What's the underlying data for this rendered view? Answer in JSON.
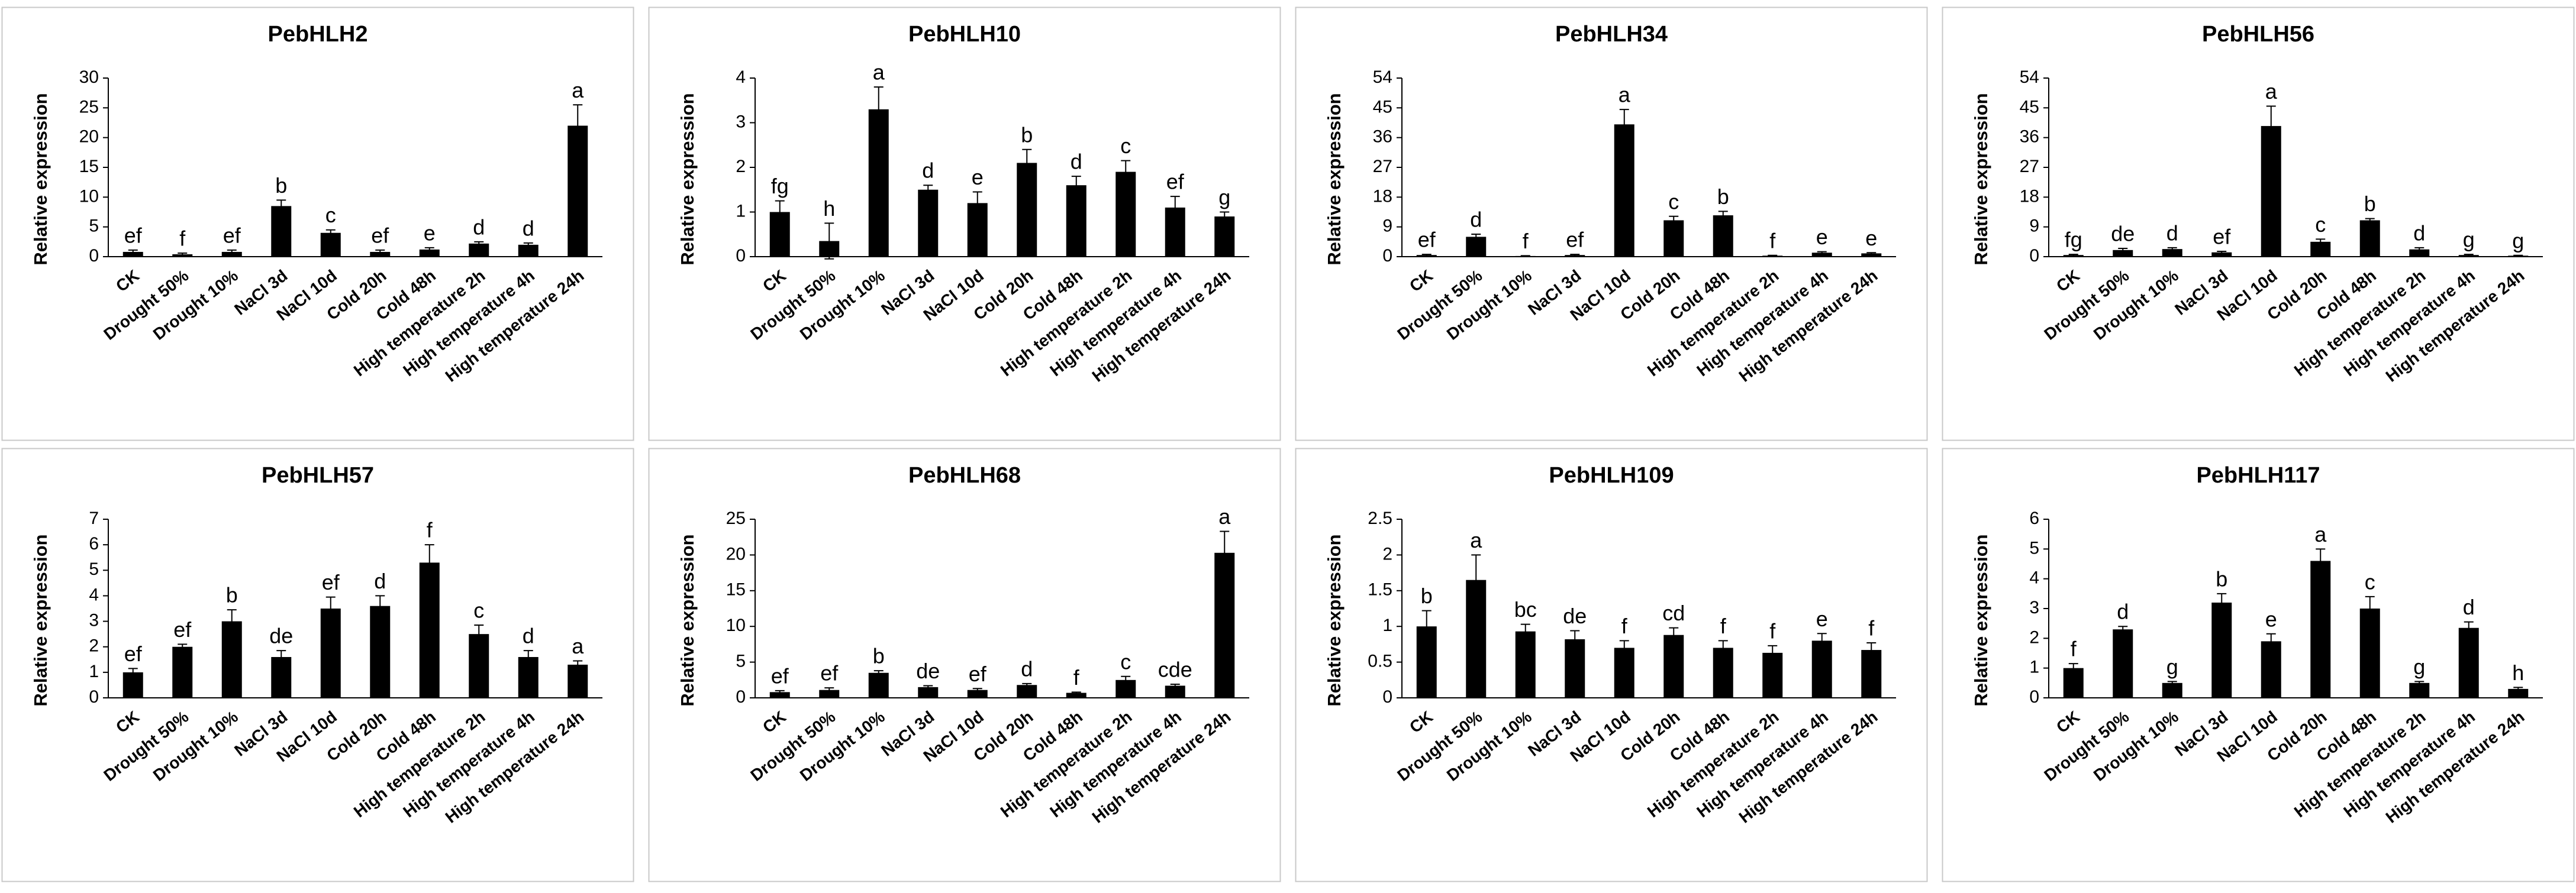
{
  "chart_data": [
    {
      "type": "bar",
      "title": "PebHLH2",
      "ylabel": "Relative expression",
      "color": "#000000",
      "categories": [
        "CK",
        "Drought 50%",
        "Drought 10%",
        "NaCl 3d",
        "NaCl 10d",
        "Cold 20h",
        "Cold 48h",
        "High temperature 2h",
        "High temperature 4h",
        "High temperature 24h"
      ],
      "values": [
        0.8,
        0.4,
        0.8,
        8.5,
        4,
        0.8,
        1.2,
        2.2,
        2,
        22
      ],
      "errors": [
        0.3,
        0.2,
        0.3,
        1,
        0.5,
        0.3,
        0.3,
        0.3,
        0.3,
        3.5
      ],
      "letters": [
        "ef",
        "f",
        "ef",
        "b",
        "c",
        "ef",
        "e",
        "d",
        "d",
        "a"
      ],
      "ylim": [
        0,
        30
      ],
      "yticks": [
        0,
        5,
        10,
        15,
        20,
        25,
        30
      ]
    },
    {
      "type": "bar",
      "title": "PebHLH10",
      "ylabel": "Relative expression",
      "color": "#000000",
      "categories": [
        "CK",
        "Drought 50%",
        "Drought 10%",
        "NaCl 3d",
        "NaCl 10d",
        "Cold 20h",
        "Cold 48h",
        "High temperature 2h",
        "High temperature 4h",
        "High temperature 24h"
      ],
      "values": [
        1.0,
        0.35,
        3.3,
        1.5,
        1.2,
        2.1,
        1.6,
        1.9,
        1.1,
        0.9
      ],
      "errors": [
        0.25,
        0.4,
        0.5,
        0.1,
        0.25,
        0.3,
        0.2,
        0.25,
        0.25,
        0.1
      ],
      "letters": [
        "fg",
        "h",
        "a",
        "d",
        "e",
        "b",
        "d",
        "c",
        "ef",
        "g"
      ],
      "ylim": [
        0,
        4
      ],
      "yticks": [
        0,
        1,
        2,
        3,
        4
      ]
    },
    {
      "type": "bar",
      "title": "PebHLH34",
      "ylabel": "Relative expression",
      "color": "#000000",
      "categories": [
        "CK",
        "Drought 50%",
        "Drought 10%",
        "NaCl 3d",
        "NaCl 10d",
        "Cold 20h",
        "Cold 48h",
        "High temperature 2h",
        "High temperature 4h",
        "High temperature 24h"
      ],
      "values": [
        0.5,
        6,
        0.2,
        0.5,
        40,
        11,
        12.5,
        0.3,
        1.2,
        1
      ],
      "errors": [
        0.2,
        0.8,
        0.1,
        0.2,
        4.5,
        1.2,
        1.2,
        0.1,
        0.3,
        0.2
      ],
      "letters": [
        "ef",
        "d",
        "f",
        "ef",
        "a",
        "c",
        "b",
        "f",
        "e",
        "e"
      ],
      "ylim": [
        0,
        54
      ],
      "yticks": [
        0,
        9,
        18,
        27,
        36,
        45,
        54
      ]
    },
    {
      "type": "bar",
      "title": "PebHLH56",
      "ylabel": "Relative expression",
      "color": "#000000",
      "categories": [
        "CK",
        "Drought 50%",
        "Drought 10%",
        "NaCl 3d",
        "NaCl 10d",
        "Cold 20h",
        "Cold 48h",
        "High temperature 2h",
        "High temperature 4h",
        "High temperature 24h"
      ],
      "values": [
        0.5,
        2,
        2.3,
        1.3,
        39.5,
        4.5,
        11,
        2.2,
        0.5,
        0.3
      ],
      "errors": [
        0.2,
        0.5,
        0.4,
        0.3,
        6,
        0.8,
        0.5,
        0.5,
        0.2,
        0.1
      ],
      "letters": [
        "fg",
        "de",
        "d",
        "ef",
        "a",
        "c",
        "b",
        "d",
        "g",
        "g"
      ],
      "ylim": [
        0,
        54
      ],
      "yticks": [
        0,
        9,
        18,
        27,
        36,
        45,
        54
      ]
    },
    {
      "type": "bar",
      "title": "PebHLH57",
      "ylabel": "Relative expression",
      "color": "#000000",
      "categories": [
        "CK",
        "Drought 50%",
        "Drought 10%",
        "NaCl 3d",
        "NaCl 10d",
        "Cold 20h",
        "Cold 48h",
        "High temperature 2h",
        "High temperature 4h",
        "High temperature 24h"
      ],
      "values": [
        1.0,
        2.0,
        3.0,
        1.6,
        3.5,
        3.6,
        5.3,
        2.5,
        1.6,
        1.3
      ],
      "errors": [
        0.15,
        0.1,
        0.45,
        0.25,
        0.45,
        0.4,
        0.7,
        0.35,
        0.25,
        0.15
      ],
      "letters": [
        "ef",
        "ef",
        "b",
        "de",
        "ef",
        "d",
        "f",
        "c",
        "d",
        "a"
      ],
      "ylim": [
        0,
        7
      ],
      "yticks": [
        0,
        1,
        2,
        3,
        4,
        5,
        6,
        7
      ]
    },
    {
      "type": "bar",
      "title": "PebHLH68",
      "ylabel": "Relative expression",
      "color": "#000000",
      "categories": [
        "CK",
        "Drought 50%",
        "Drought 10%",
        "NaCl 3d",
        "NaCl 10d",
        "Cold 20h",
        "Cold 48h",
        "High temperature 2h",
        "High temperature 4h",
        "High temperature 24h"
      ],
      "values": [
        0.8,
        1.1,
        3.5,
        1.5,
        1.1,
        1.8,
        0.7,
        2.5,
        1.7,
        20.3
      ],
      "errors": [
        0.2,
        0.3,
        0.3,
        0.2,
        0.2,
        0.2,
        0.1,
        0.5,
        0.2,
        3
      ],
      "letters": [
        "ef",
        "ef",
        "b",
        "de",
        "ef",
        "d",
        "f",
        "c",
        "cde",
        "a"
      ],
      "ylim": [
        0,
        25
      ],
      "yticks": [
        0,
        5,
        10,
        15,
        20,
        25
      ]
    },
    {
      "type": "bar",
      "title": "PebHLH109",
      "ylabel": "Relative expression",
      "color": "#000000",
      "categories": [
        "CK",
        "Drought 50%",
        "Drought 10%",
        "NaCl 3d",
        "NaCl 10d",
        "Cold 20h",
        "Cold 48h",
        "High temperature 2h",
        "High temperature 4h",
        "High temperature 24h"
      ],
      "values": [
        1.0,
        1.65,
        0.93,
        0.82,
        0.7,
        0.88,
        0.7,
        0.63,
        0.8,
        0.67
      ],
      "errors": [
        0.22,
        0.35,
        0.1,
        0.12,
        0.1,
        0.1,
        0.1,
        0.1,
        0.1,
        0.1
      ],
      "letters": [
        "b",
        "a",
        "bc",
        "de",
        "f",
        "cd",
        "f",
        "f",
        "e",
        "f"
      ],
      "ylim": [
        0,
        2.5
      ],
      "yticks": [
        0,
        0.5,
        1,
        1.5,
        2,
        2.5
      ]
    },
    {
      "type": "bar",
      "title": "PebHLH117",
      "ylabel": "Relative expression",
      "color": "#000000",
      "categories": [
        "CK",
        "Drought 50%",
        "Drought 10%",
        "NaCl 3d",
        "NaCl 10d",
        "Cold 20h",
        "Cold 48h",
        "High temperature 2h",
        "High temperature 4h",
        "High temperature 24h"
      ],
      "values": [
        1.0,
        2.3,
        0.5,
        3.2,
        1.9,
        4.6,
        3.0,
        0.5,
        2.35,
        0.3
      ],
      "errors": [
        0.15,
        0.1,
        0.05,
        0.3,
        0.25,
        0.4,
        0.4,
        0.05,
        0.2,
        0.05
      ],
      "letters": [
        "f",
        "d",
        "g",
        "b",
        "e",
        "a",
        "c",
        "g",
        "d",
        "h"
      ],
      "ylim": [
        0,
        6
      ],
      "yticks": [
        0,
        1,
        2,
        3,
        4,
        5,
        6
      ]
    }
  ]
}
